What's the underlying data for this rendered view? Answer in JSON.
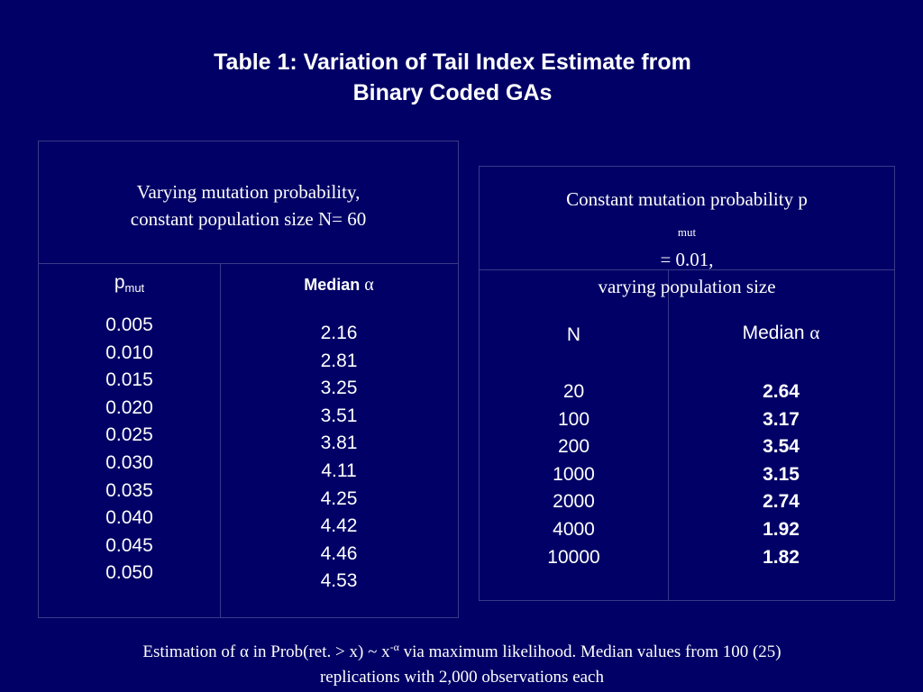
{
  "title": {
    "line1": "Table 1: Variation of Tail Index Estimate from",
    "line2": "Binary Coded GAs"
  },
  "left_table": {
    "header_line1": "Varying mutation probability,",
    "header_line2": "constant population size N= 60",
    "col1_label": "p",
    "col1_sub": "mut",
    "col2_label": "Median ",
    "col2_symbol": "α",
    "p_mut": [
      "0.005",
      "0.010",
      "0.015",
      "0.020",
      "0.025",
      "0.030",
      "0.035",
      "0.040",
      "0.045",
      "0.050"
    ],
    "median_alpha": [
      "2.16",
      "2.81",
      "3.25",
      "3.51",
      "3.81",
      "4.11",
      "4.25",
      "4.42",
      "4.46",
      "4.53"
    ]
  },
  "right_table": {
    "header_pre": "Constant mutation probability p",
    "header_sub": "mut",
    "header_post": " = 0.01,",
    "header_line2": "varying population size",
    "col1_label": "N",
    "col2_label": "Median ",
    "col2_symbol": "α",
    "N": [
      "20",
      "100",
      "200",
      "1000",
      "2000",
      "4000",
      "10000"
    ],
    "median_alpha": [
      "2.64",
      "3.17",
      "3.54",
      "3.15",
      "2.74",
      "1.92",
      "1.82"
    ]
  },
  "footer": {
    "part1": "Estimation of ",
    "alpha": "α",
    "part2": " in Prob(ret. > x) ~  x",
    "sup": "-α",
    "part3": "  via maximum likelihood. Median values from 100 (25)",
    "line2": "replications with 2,000 observations each"
  }
}
